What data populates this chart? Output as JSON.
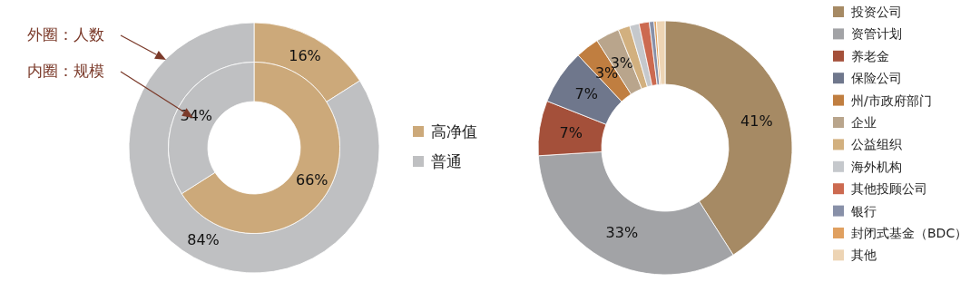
{
  "chart_data": [
    {
      "type": "donut",
      "categories": [
        "高净值",
        "普通"
      ],
      "series": [
        {
          "values": [
            16,
            84
          ],
          "value_labels": [
            "16%",
            "84%"
          ],
          "colors": [
            "#cca97a",
            "#bfc0c2"
          ]
        },
        {
          "values": [
            66,
            34
          ],
          "value_labels": [
            "66%",
            "34%"
          ],
          "colors": [
            "#cca97a",
            "#bfc0c2"
          ]
        }
      ],
      "legend": "right",
      "annotations": [
        "外圈：人数",
        "内圈：规模"
      ]
    },
    {
      "type": "donut",
      "categories": [
        "投资公司",
        "资管计划",
        "养老金",
        "保险公司",
        "州/市政府部门",
        "企业",
        "公益组织",
        "海外机构",
        "其他投顾公司",
        "银行",
        "封闭式基金（BDC）",
        "其他"
      ],
      "values": [
        41,
        33,
        7,
        7,
        3,
        3,
        1.5,
        1.2,
        1.3,
        0.6,
        0.3,
        1.1
      ],
      "value_labels": [
        "41%",
        "33%",
        "7%",
        "7%",
        "3%",
        "3%",
        null,
        null,
        null,
        null,
        null,
        null
      ],
      "colors": [
        "#a68a64",
        "#a2a3a6",
        "#a4503a",
        "#6f778c",
        "#c07e40",
        "#b9a58c",
        "#d2b07f",
        "#c5c8cc",
        "#cc6a50",
        "#8890a8",
        "#e0a060",
        "#edd4b4"
      ],
      "legend": "right"
    }
  ]
}
